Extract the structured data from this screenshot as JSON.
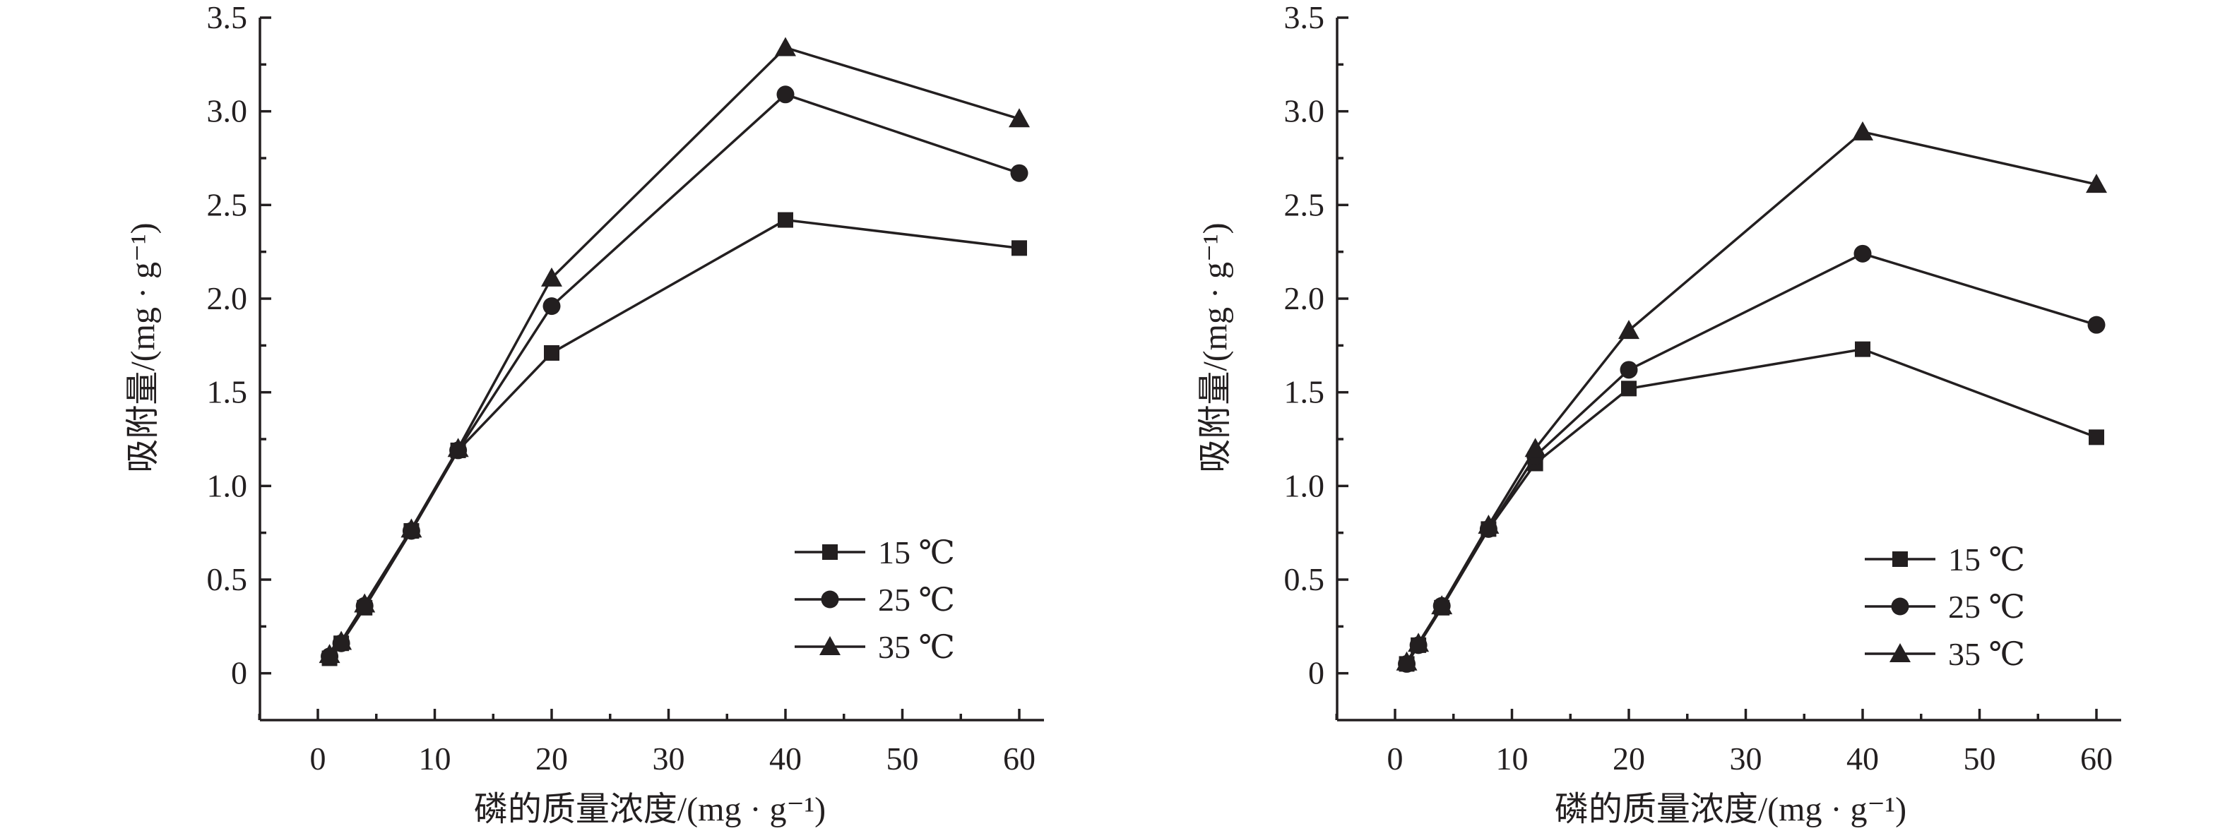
{
  "chart_data": [
    {
      "type": "line",
      "xlabel": "磷的质量浓度/(mg · g⁻¹)",
      "ylabel": "吸附量/(mg · g⁻¹)",
      "xlim": [
        -5,
        60
      ],
      "ylim": [
        -0.25,
        3.5
      ],
      "xticks": [
        0,
        10,
        20,
        30,
        40,
        50,
        60
      ],
      "yticks": [
        0,
        0.5,
        1.0,
        1.5,
        2.0,
        2.5,
        3.0,
        3.5
      ],
      "xtick_labels": [
        "0",
        "10",
        "20",
        "30",
        "40",
        "50",
        "60"
      ],
      "ytick_labels": [
        "0",
        "0.5",
        "1.0",
        "1.5",
        "2.0",
        "2.5",
        "3.0",
        "3.5"
      ],
      "legend_position": "lower-right",
      "x": [
        1,
        2,
        4,
        8,
        12,
        20,
        40,
        60
      ],
      "series": [
        {
          "name": "15 ℃",
          "marker": "square",
          "values": [
            0.08,
            0.16,
            0.35,
            0.76,
            1.19,
            1.71,
            2.42,
            2.27
          ]
        },
        {
          "name": "25 ℃",
          "marker": "circle",
          "values": [
            0.09,
            0.16,
            0.36,
            0.76,
            1.19,
            1.96,
            3.09,
            2.67
          ]
        },
        {
          "name": "35 ℃",
          "marker": "triangle",
          "values": [
            0.1,
            0.17,
            0.37,
            0.77,
            1.2,
            2.11,
            3.34,
            2.96
          ]
        }
      ]
    },
    {
      "type": "line",
      "xlabel": "磷的质量浓度/(mg · g⁻¹)",
      "ylabel": "吸附量/(mg · g⁻¹)",
      "xlim": [
        -5,
        60
      ],
      "ylim": [
        -0.25,
        3.5
      ],
      "xticks": [
        0,
        10,
        20,
        30,
        40,
        50,
        60
      ],
      "yticks": [
        0,
        0.5,
        1.0,
        1.5,
        2.0,
        2.5,
        3.0,
        3.5
      ],
      "xtick_labels": [
        "0",
        "10",
        "20",
        "30",
        "40",
        "50",
        "60"
      ],
      "ytick_labels": [
        "0",
        "0.5",
        "1.0",
        "1.5",
        "2.0",
        "2.5",
        "3.0",
        "3.5"
      ],
      "legend_position": "lower-right",
      "x": [
        1,
        2,
        4,
        8,
        12,
        20,
        40,
        60
      ],
      "series": [
        {
          "name": "15 ℃",
          "marker": "square",
          "values": [
            0.05,
            0.15,
            0.35,
            0.77,
            1.12,
            1.52,
            1.73,
            1.26
          ]
        },
        {
          "name": "25 ℃",
          "marker": "circle",
          "values": [
            0.05,
            0.15,
            0.36,
            0.77,
            1.16,
            1.62,
            2.24,
            1.86
          ]
        },
        {
          "name": "35 ℃",
          "marker": "triangle",
          "values": [
            0.06,
            0.16,
            0.36,
            0.79,
            1.2,
            1.83,
            2.89,
            2.61
          ]
        }
      ]
    }
  ]
}
